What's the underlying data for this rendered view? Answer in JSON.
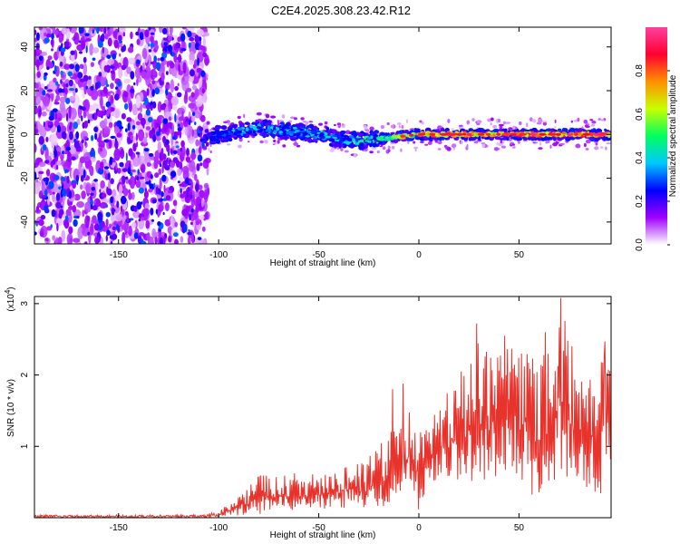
{
  "title": "C2E4.2025.308.23.42.R12",
  "chart_data": [
    {
      "type": "heatmap",
      "title": "C2E4.2025.308.23.42.R12",
      "xlabel": "Height of straight line (km)",
      "ylabel": "Frequency (Hz)",
      "xlim": [
        -192,
        96
      ],
      "ylim": [
        -50,
        49
      ],
      "xticks": [
        -150,
        -100,
        -50,
        0,
        50
      ],
      "yticks": [
        -40,
        -20,
        0,
        20,
        40
      ],
      "xtick_labels": [
        "-150",
        "-100",
        "-50",
        "0",
        "50"
      ],
      "ytick_labels": [
        "-40",
        "-20",
        "0",
        "20",
        "40"
      ],
      "noise_region_x": [
        -192,
        -107
      ],
      "ridge": {
        "x": [
          -107,
          -100,
          -90,
          -80,
          -70,
          -60,
          -50,
          -40,
          -30,
          -20,
          -10,
          0,
          10,
          20,
          30,
          40,
          50,
          60,
          70,
          80,
          96
        ],
        "freq": [
          -2,
          0,
          1,
          3,
          2,
          1,
          0,
          -2,
          -3,
          -2,
          -1,
          0,
          0,
          0,
          0,
          0,
          0,
          0,
          0,
          0,
          0
        ],
        "amplitude": [
          0.05,
          0.35,
          0.45,
          0.45,
          0.45,
          0.45,
          0.45,
          0.45,
          0.5,
          0.55,
          0.7,
          0.85,
          0.9,
          0.9,
          0.9,
          0.9,
          0.9,
          0.9,
          0.9,
          0.9,
          0.9
        ]
      },
      "colorbar": {
        "label": "Normalized spectral amplitude",
        "range": [
          0.0,
          1.0
        ],
        "ticks": [
          0.0,
          0.2,
          0.4,
          0.6,
          0.8
        ],
        "tick_labels": [
          "0.0",
          "0.2",
          "0.4",
          "0.6",
          "0.8"
        ],
        "colors": [
          "#ffffff",
          "#a000ff",
          "#0000ff",
          "#00c8ff",
          "#00ff60",
          "#c8ff00",
          "#ff9000",
          "#ff0030",
          "#ff40a0"
        ]
      }
    },
    {
      "type": "line",
      "xlabel": "Height of straight line (km)",
      "ylabel": "SNR (10 * v/v)",
      "scale_label": "(x10",
      "scale_exp": "4",
      "scale_close": ")",
      "xlim": [
        -192,
        96
      ],
      "ylim": [
        0,
        3.1
      ],
      "xticks": [
        -150,
        -100,
        -50,
        0,
        50
      ],
      "yticks": [
        1,
        2,
        3
      ],
      "xtick_labels": [
        "-150",
        "-100",
        "-50",
        "0",
        "50"
      ],
      "ytick_labels": [
        "1",
        "2",
        "3"
      ],
      "series": [
        {
          "name": "SNR",
          "color": "#e8332c",
          "envelope": {
            "x": [
              -192,
              -110,
              -100,
              -95,
              -90,
              -80,
              -70,
              -60,
              -50,
              -40,
              -30,
              -20,
              -15,
              -10,
              -5,
              0,
              5,
              10,
              20,
              30,
              40,
              50,
              60,
              70,
              80,
              90,
              96
            ],
            "min": [
              0.0,
              0.0,
              0.01,
              0.02,
              0.03,
              0.05,
              0.08,
              0.1,
              0.1,
              0.15,
              0.1,
              0.1,
              0.2,
              0.3,
              0.5,
              0.1,
              0.4,
              0.6,
              0.5,
              0.4,
              0.6,
              0.5,
              0.2,
              0.6,
              0.5,
              0.3,
              0.6
            ],
            "max": [
              0.04,
              0.04,
              0.08,
              0.2,
              0.35,
              0.6,
              0.6,
              0.65,
              0.6,
              0.7,
              0.8,
              1.0,
              1.2,
              1.25,
              1.5,
              1.2,
              1.3,
              1.6,
              2.0,
              2.5,
              2.3,
              2.6,
              2.2,
              3.1,
              2.2,
              2.5,
              2.4
            ]
          },
          "peaks": [
            {
              "x": -13,
              "y": 1.8
            },
            {
              "x": -8,
              "y": 1.88
            },
            {
              "x": 29,
              "y": 2.72
            },
            {
              "x": 43,
              "y": 2.55
            },
            {
              "x": 63,
              "y": 2.6
            },
            {
              "x": 71,
              "y": 3.08
            },
            {
              "x": 93,
              "y": 2.47
            }
          ]
        }
      ]
    }
  ]
}
